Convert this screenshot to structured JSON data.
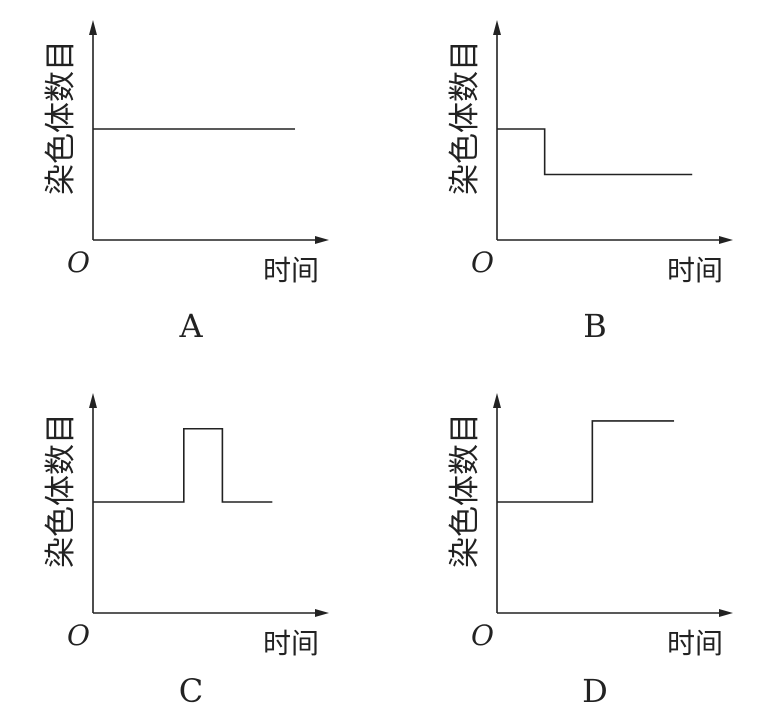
{
  "chart_data": [
    {
      "type": "line",
      "panel_label": "A",
      "ylabel": "染色体数目",
      "xlabel": "时间",
      "origin_label": "O",
      "x": [
        0,
        0.89
      ],
      "y": [
        1,
        1
      ],
      "step": true,
      "xlim": [
        0,
        1
      ],
      "ylim": [
        0,
        2
      ]
    },
    {
      "type": "line",
      "panel_label": "B",
      "ylabel": "染色体数目",
      "xlabel": "时间",
      "origin_label": "O",
      "x": [
        0,
        0.21,
        0.21,
        0.86
      ],
      "y": [
        1,
        1,
        0.59,
        0.59
      ],
      "step": true,
      "xlim": [
        0,
        1
      ],
      "ylim": [
        0,
        2
      ]
    },
    {
      "type": "line",
      "panel_label": "C",
      "ylabel": "染色体数目",
      "xlabel": "时间",
      "origin_label": "O",
      "x": [
        0,
        0.4,
        0.4,
        0.57,
        0.57,
        0.79
      ],
      "y": [
        1,
        1,
        1.66,
        1.66,
        1,
        1
      ],
      "step": true,
      "xlim": [
        0,
        1
      ],
      "ylim": [
        0,
        2
      ]
    },
    {
      "type": "line",
      "panel_label": "D",
      "ylabel": "染色体数目",
      "xlabel": "时间",
      "origin_label": "O",
      "x": [
        0,
        0.42,
        0.42,
        0.78
      ],
      "y": [
        1,
        1,
        1.73,
        1.73
      ],
      "step": true,
      "xlim": [
        0,
        1
      ],
      "ylim": [
        0,
        2
      ]
    }
  ]
}
